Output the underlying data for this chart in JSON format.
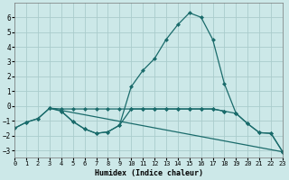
{
  "xlabel": "Humidex (Indice chaleur)",
  "xlim": [
    0,
    23
  ],
  "ylim": [
    -3.5,
    7.0
  ],
  "yticks": [
    -3,
    -2,
    -1,
    0,
    1,
    2,
    3,
    4,
    5,
    6
  ],
  "xticks": [
    0,
    1,
    2,
    3,
    4,
    5,
    6,
    7,
    8,
    9,
    10,
    11,
    12,
    13,
    14,
    15,
    16,
    17,
    18,
    19,
    20,
    21,
    22,
    23
  ],
  "bg_color": "#cce8e8",
  "grid_color": "#aacccc",
  "line_color": "#1a6b6b",
  "markersize": 2.5,
  "line1_x": [
    0,
    1,
    2,
    3,
    4,
    5,
    6,
    7,
    8,
    9,
    10,
    11,
    12,
    13,
    14,
    15,
    16,
    17,
    18
  ],
  "line1_y": [
    -1.5,
    -1.1,
    -0.85,
    -0.15,
    -0.2,
    -0.2,
    -0.2,
    -0.2,
    -0.2,
    -0.2,
    -0.2,
    -0.2,
    -0.2,
    -0.2,
    -0.2,
    -0.2,
    -0.2,
    -0.2,
    -0.35
  ],
  "line2_x": [
    0,
    1,
    2,
    3,
    4,
    5,
    6,
    7,
    8,
    9,
    10,
    11,
    12,
    13,
    14,
    15,
    16,
    17,
    18,
    19,
    20,
    21,
    22,
    23
  ],
  "line2_y": [
    -1.5,
    -1.1,
    -0.85,
    -0.15,
    -0.35,
    -1.05,
    -1.55,
    -1.85,
    -1.75,
    -1.3,
    1.3,
    2.4,
    3.2,
    4.5,
    5.5,
    6.3,
    6.0,
    4.5,
    1.5,
    -0.5,
    -1.2,
    -1.8,
    -1.85,
    -3.1
  ],
  "line3_x": [
    3,
    23
  ],
  "line3_y": [
    -0.15,
    -3.1
  ],
  "line4_x": [
    4,
    5,
    6,
    7,
    8,
    9,
    10,
    11,
    12,
    13,
    14,
    15,
    16,
    17,
    18,
    19,
    20,
    21,
    22,
    23
  ],
  "line4_y": [
    -0.35,
    -1.05,
    -1.55,
    -1.85,
    -1.75,
    -1.3,
    -0.2,
    -0.2,
    -0.2,
    -0.2,
    -0.2,
    -0.2,
    -0.2,
    -0.2,
    -0.35,
    -0.5,
    -1.2,
    -1.8,
    -1.85,
    -3.1
  ]
}
